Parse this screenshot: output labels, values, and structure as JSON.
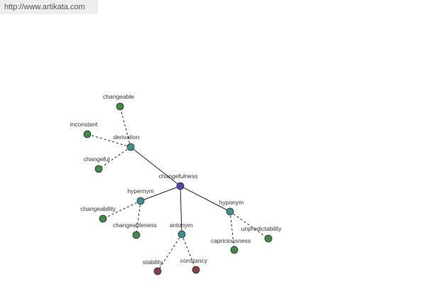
{
  "header": {
    "url": "http://www.artikata.com"
  },
  "nodes": [
    {
      "label": "changefulness"
    },
    {
      "label": "derivation"
    },
    {
      "label": "hypernym"
    },
    {
      "label": "antonym"
    },
    {
      "label": "hyponym"
    },
    {
      "label": "changeable"
    },
    {
      "label": "inconstant"
    },
    {
      "label": "changeful"
    },
    {
      "label": "changeability"
    },
    {
      "label": "changeableness"
    },
    {
      "label": "stability"
    },
    {
      "label": "constancy"
    },
    {
      "label": "capriciousness"
    },
    {
      "label": "unpredictability"
    }
  ]
}
